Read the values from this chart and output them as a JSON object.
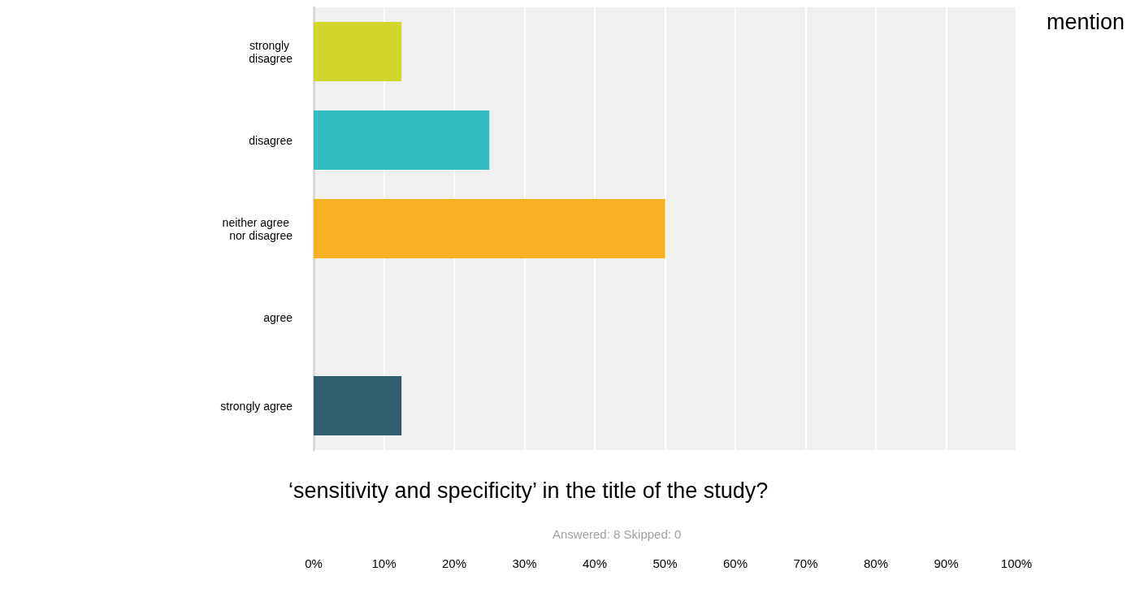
{
  "chart_data": {
    "type": "bar",
    "orientation": "horizontal",
    "title": "mention",
    "subtitle": "‘sensitivity and specificity’ in the title of the study?",
    "annotations": [
      "Answered: 8 Skipped: 0"
    ],
    "categories": [
      "strongly disagree",
      "disagree",
      "neither agree nor disagree",
      "agree",
      "strongly agree"
    ],
    "values": [
      12.5,
      25,
      50,
      0,
      12.5
    ],
    "colors": [
      "#d1d62a",
      "#35bdbf",
      "#f7b01f",
      null,
      "#2f5f6d"
    ],
    "xlim": [
      0,
      100
    ],
    "xticks": [
      {
        "value": 0,
        "label": "0%"
      },
      {
        "value": 10,
        "label": "10%"
      },
      {
        "value": 20,
        "label": "20%"
      },
      {
        "value": 30,
        "label": "30%"
      },
      {
        "value": 40,
        "label": "40%"
      },
      {
        "value": 50,
        "label": "50%"
      },
      {
        "value": 60,
        "label": "60%"
      },
      {
        "value": 70,
        "label": "70%"
      },
      {
        "value": 80,
        "label": "80%"
      },
      {
        "value": 90,
        "label": "90%"
      },
      {
        "value": 100,
        "label": "100%"
      }
    ],
    "grid": "x"
  }
}
